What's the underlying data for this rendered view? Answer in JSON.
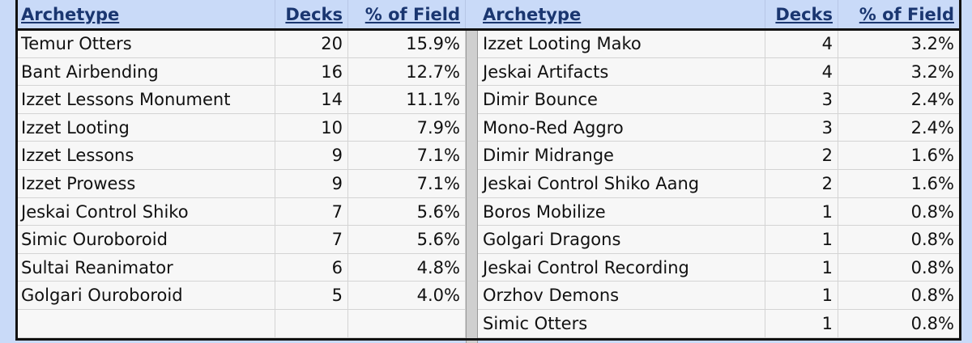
{
  "left": {
    "columns": [
      "Archetype",
      "Decks",
      "% of Field"
    ],
    "rows": [
      [
        "Temur Otters",
        "20",
        "15.9%"
      ],
      [
        "Bant Airbending",
        "16",
        "12.7%"
      ],
      [
        "Izzet Lessons Monument",
        "14",
        "11.1%"
      ],
      [
        "Izzet Looting",
        "10",
        "7.9%"
      ],
      [
        "Izzet Lessons",
        "9",
        "7.1%"
      ],
      [
        "Izzet Prowess",
        "9",
        "7.1%"
      ],
      [
        "Jeskai Control Shiko",
        "7",
        "5.6%"
      ],
      [
        "Simic Ouroboroid",
        "7",
        "5.6%"
      ],
      [
        "Sultai Reanimator",
        "6",
        "4.8%"
      ],
      [
        "Golgari Ouroboroid",
        "5",
        "4.0%"
      ]
    ]
  },
  "right": {
    "columns": [
      "Archetype",
      "Decks",
      "% of Field"
    ],
    "rows": [
      [
        "Izzet Looting Mako",
        "4",
        "3.2%"
      ],
      [
        "Jeskai Artifacts",
        "4",
        "3.2%"
      ],
      [
        "Dimir Bounce",
        "3",
        "2.4%"
      ],
      [
        "Mono-Red Aggro",
        "3",
        "2.4%"
      ],
      [
        "Dimir Midrange",
        "2",
        "1.6%"
      ],
      [
        "Jeskai Control Shiko Aang",
        "2",
        "1.6%"
      ],
      [
        "Boros Mobilize",
        "1",
        "0.8%"
      ],
      [
        "Golgari Dragons",
        "1",
        "0.8%"
      ],
      [
        "Jeskai Control Recording",
        "1",
        "0.8%"
      ],
      [
        "Orzhov Demons",
        "1",
        "0.8%"
      ],
      [
        "Simic Otters",
        "1",
        "0.8%"
      ]
    ]
  }
}
